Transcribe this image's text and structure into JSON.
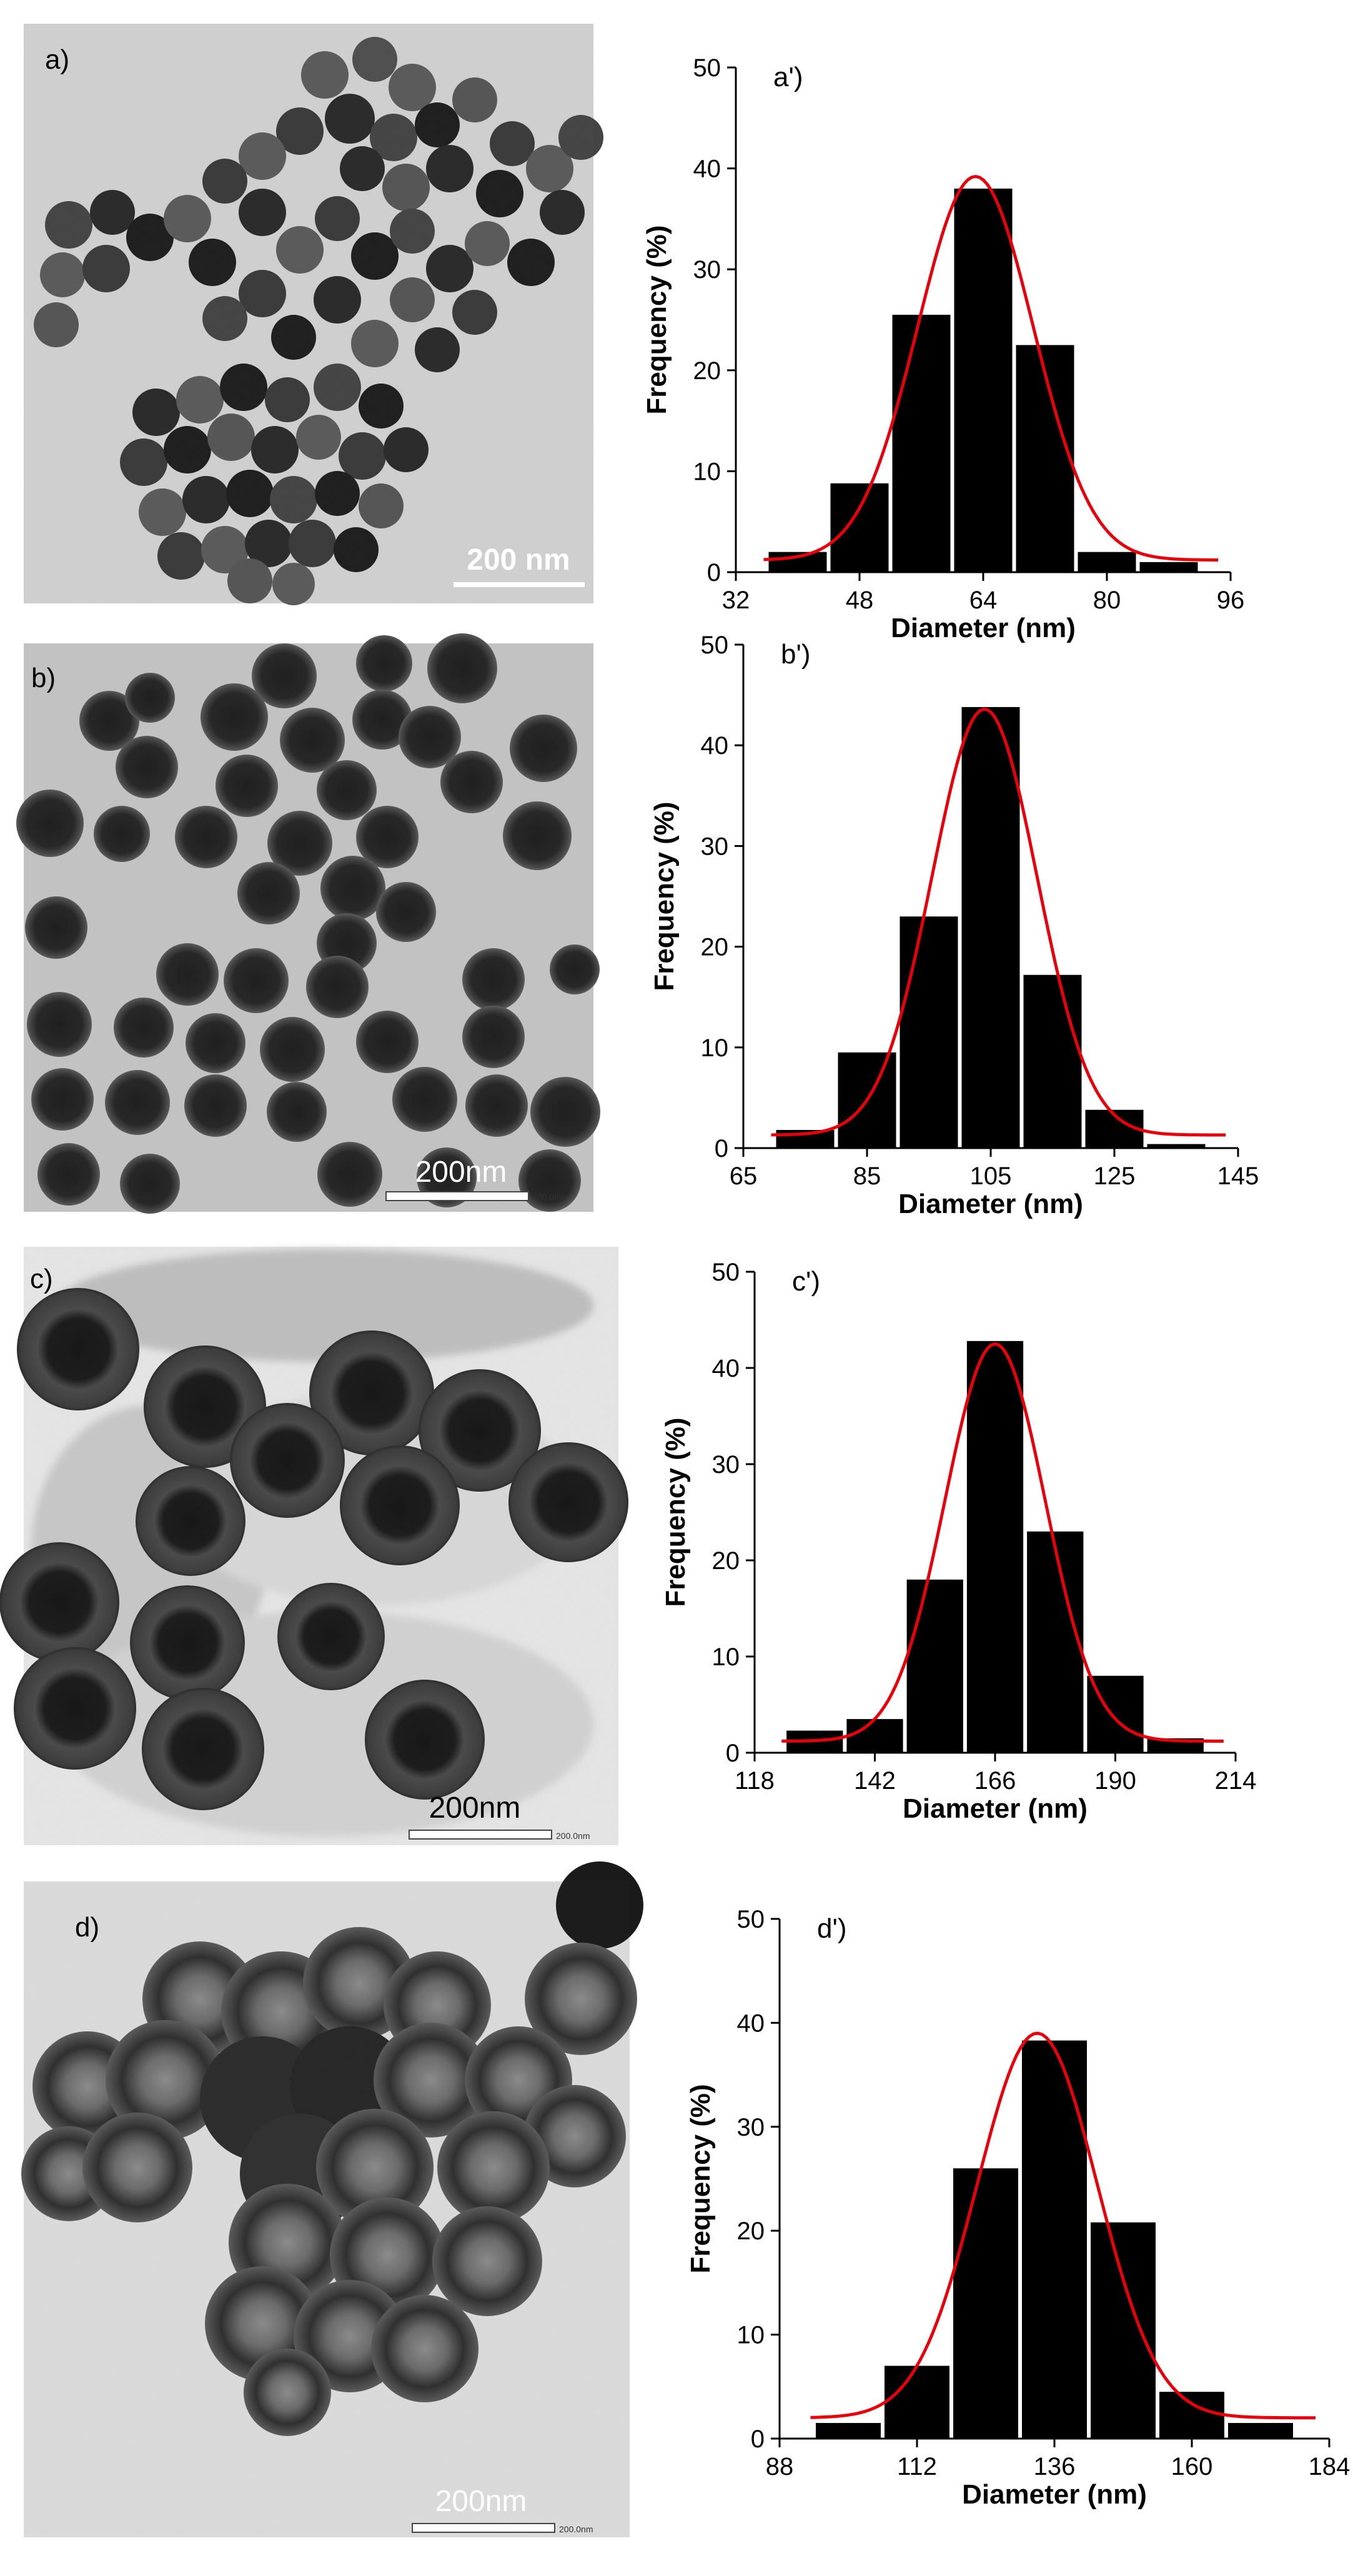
{
  "micrographs": [
    {
      "label": "a)",
      "scale_bar_text": "200 nm",
      "scale_bar_small_text": ""
    },
    {
      "label": "b)",
      "scale_bar_text": "200nm",
      "scale_bar_small_text": "200.0nm"
    },
    {
      "label": "c)",
      "scale_bar_text": "200nm",
      "scale_bar_small_text": "200.0nm"
    },
    {
      "label": "d)",
      "scale_bar_text": "200nm",
      "scale_bar_small_text": "200.0nm"
    }
  ],
  "colors": {
    "bars": "#000000",
    "fit_curve": "#e8000b",
    "axes": "#000000"
  },
  "chart_data": [
    {
      "type": "bar",
      "panel_label": "a')",
      "xlabel": "Diameter (nm)",
      "ylabel": "Frequency (%)",
      "xlim": [
        32,
        96
      ],
      "xticks": [
        32,
        48,
        64,
        80,
        96
      ],
      "ylim": [
        0,
        50
      ],
      "yticks": [
        0,
        10,
        20,
        30,
        40,
        50
      ],
      "bin_width": 8,
      "bin_centers": [
        40,
        48,
        56,
        64,
        72,
        80,
        88
      ],
      "values": [
        2,
        8.8,
        25.5,
        38,
        22.5,
        2,
        1
      ],
      "fit": {
        "kind": "gaussian",
        "peak": 39.2,
        "center": 63,
        "sigma": 7.5,
        "baseline": 1.2
      },
      "grid": false,
      "legend": "none"
    },
    {
      "type": "bar",
      "panel_label": "b')",
      "xlabel": "Diameter (nm)",
      "ylabel": "Frequency (%)",
      "xlim": [
        65,
        145
      ],
      "xticks": [
        65,
        85,
        105,
        125,
        145
      ],
      "ylim": [
        0,
        50
      ],
      "yticks": [
        0,
        10,
        20,
        30,
        40,
        50
      ],
      "bin_width": 10,
      "bin_centers": [
        75,
        85,
        95,
        105,
        115,
        125,
        135
      ],
      "values": [
        1.8,
        9.5,
        23,
        43.8,
        17.2,
        3.8,
        0.4
      ],
      "fit": {
        "kind": "gaussian",
        "peak": 43.6,
        "center": 104,
        "sigma": 8.5,
        "baseline": 1.3
      },
      "grid": false,
      "legend": "none"
    },
    {
      "type": "bar",
      "panel_label": "c')",
      "xlabel": "Diameter (nm)",
      "ylabel": "Frequency (%)",
      "xlim": [
        118,
        214
      ],
      "xticks": [
        118,
        142,
        166,
        190,
        214
      ],
      "ylim": [
        0,
        50
      ],
      "yticks": [
        0,
        10,
        20,
        30,
        40,
        50
      ],
      "bin_width": 12,
      "bin_centers": [
        130,
        142,
        154,
        166,
        178,
        190,
        202
      ],
      "values": [
        2.3,
        3.5,
        18,
        42.8,
        23,
        8,
        1.5
      ],
      "fit": {
        "kind": "gaussian",
        "peak": 42.5,
        "center": 166,
        "sigma": 10,
        "baseline": 1.2
      },
      "grid": false,
      "legend": "none"
    },
    {
      "type": "bar",
      "panel_label": "d')",
      "xlabel": "Diameter (nm)",
      "ylabel": "Frequency (%)",
      "xlim": [
        88,
        184
      ],
      "xticks": [
        88,
        112,
        136,
        160,
        184
      ],
      "ylim": [
        0,
        50
      ],
      "yticks": [
        0,
        10,
        20,
        30,
        40,
        50
      ],
      "bin_width": 12,
      "bin_centers": [
        100,
        112,
        124,
        136,
        148,
        160,
        172
      ],
      "values": [
        1.5,
        7,
        26,
        38.3,
        20.8,
        4.5,
        1.5
      ],
      "fit": {
        "kind": "gaussian",
        "peak": 39,
        "center": 133,
        "sigma": 10.5,
        "baseline": 2
      },
      "grid": false,
      "legend": "none"
    }
  ]
}
